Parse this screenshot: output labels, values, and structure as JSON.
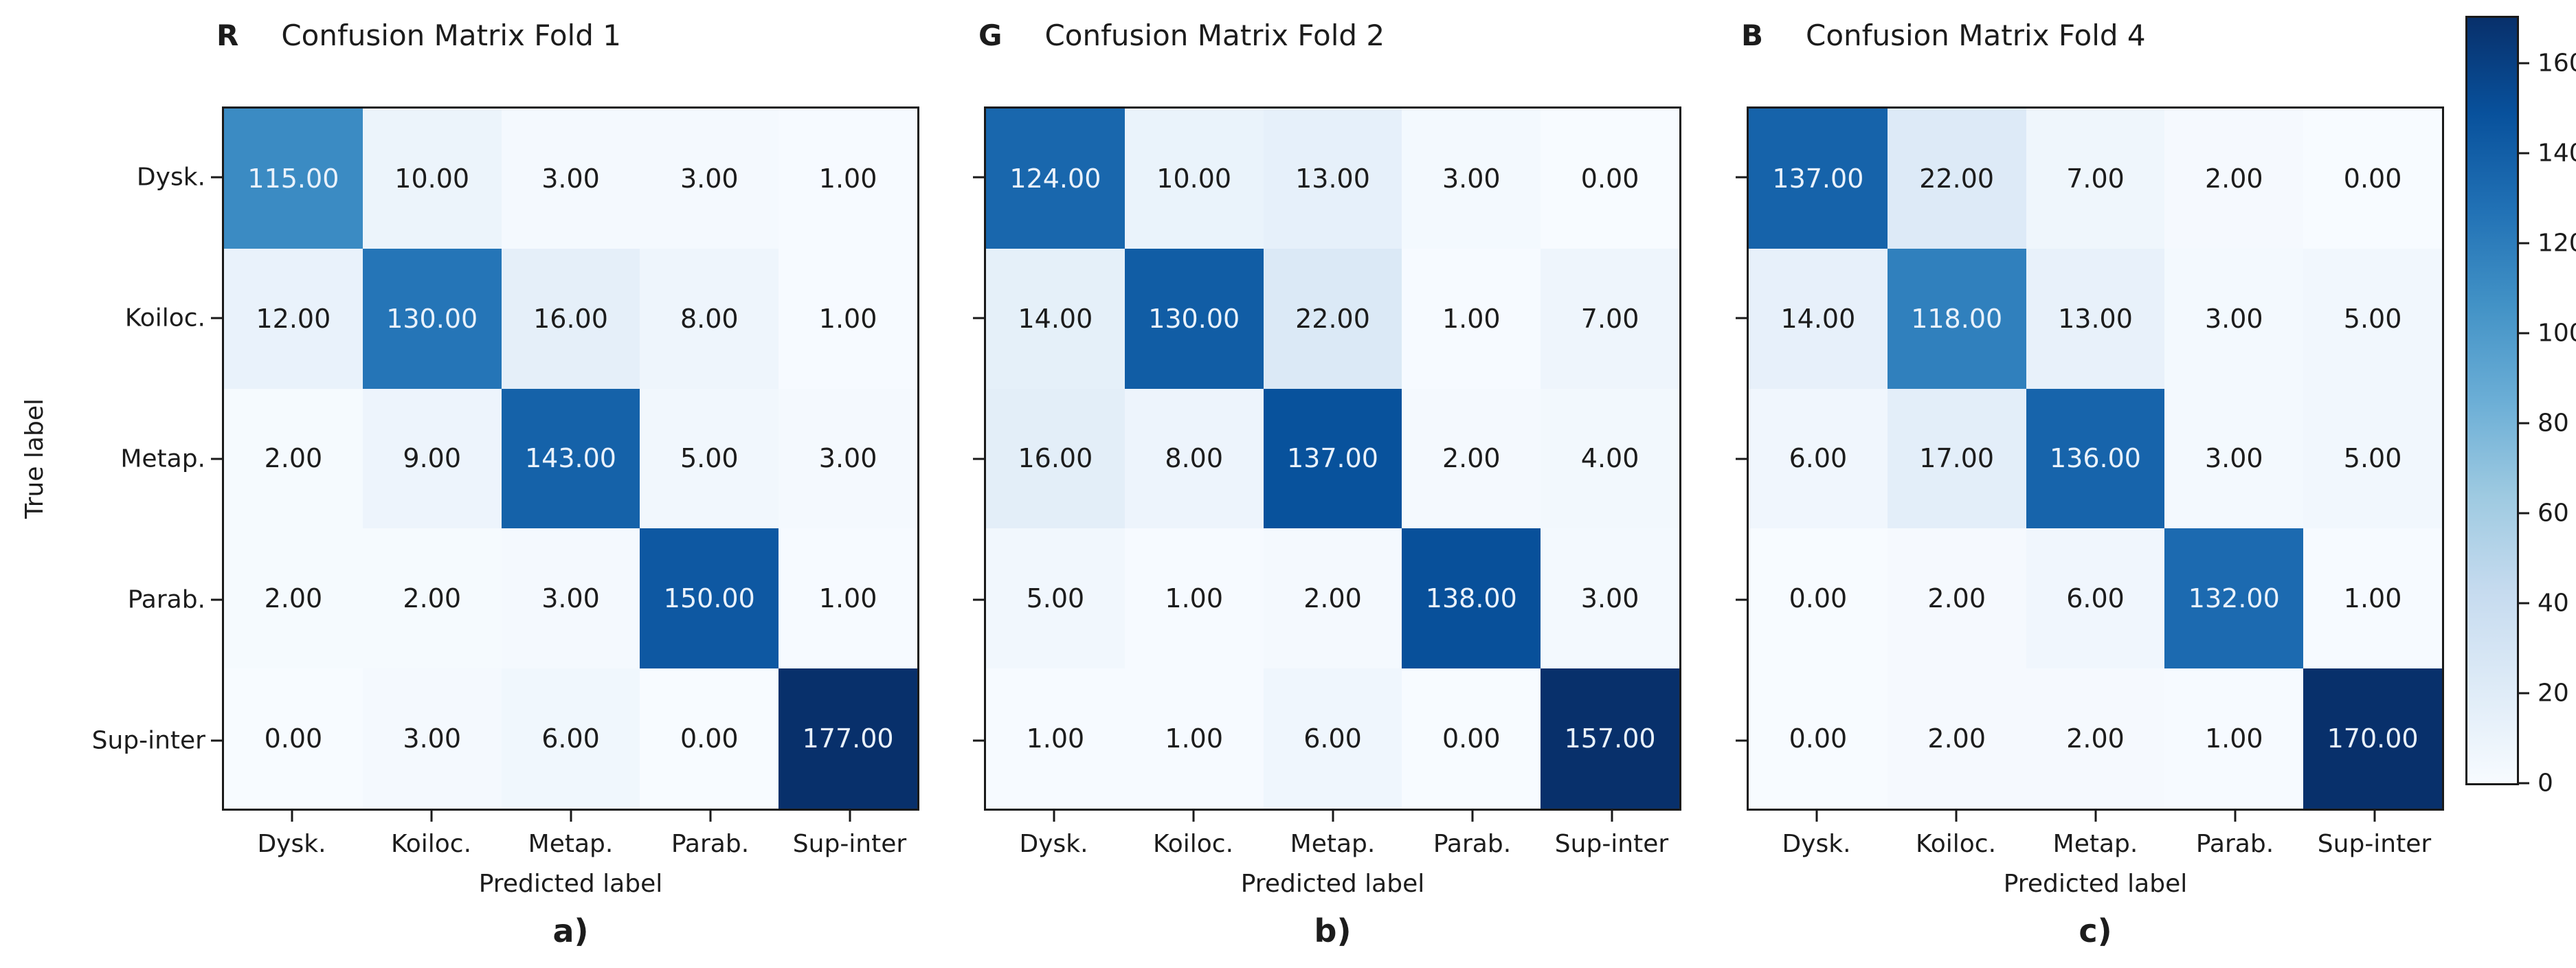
{
  "figure": {
    "background": "#ffffff"
  },
  "colors": {
    "spine": "#1a1a1a",
    "dark_text": "#1c1c1c",
    "light_text": "#eaf2fb",
    "cmap_stops": [
      "#f7fbff",
      "#deebf7",
      "#c6dbef",
      "#9ecae1",
      "#6baed6",
      "#4292c6",
      "#2171b5",
      "#08519c",
      "#08306b"
    ]
  },
  "colorbar": {
    "ticks": [
      0,
      20,
      40,
      60,
      80,
      100,
      120,
      140,
      160
    ],
    "vmax": 170
  },
  "chart_data": [
    {
      "type": "heatmap",
      "colormap": "Blues",
      "channel": "R",
      "title": "Confusion Matrix Fold 1",
      "caption": "a)",
      "xlabel": "Predicted label",
      "ylabel": "True label",
      "x_categories": [
        "Dysk.",
        "Koiloc.",
        "Metap.",
        "Parab.",
        "Sup-inter"
      ],
      "y_categories": [
        "Dysk.",
        "Koiloc.",
        "Metap.",
        "Parab.",
        "Sup-inter"
      ],
      "values": [
        [
          115,
          10,
          3,
          3,
          1
        ],
        [
          12,
          130,
          16,
          8,
          1
        ],
        [
          2,
          9,
          143,
          5,
          3
        ],
        [
          2,
          2,
          3,
          150,
          1
        ],
        [
          0,
          3,
          6,
          0,
          177
        ]
      ]
    },
    {
      "type": "heatmap",
      "colormap": "Blues",
      "channel": "G",
      "title": "Confusion Matrix Fold 2",
      "caption": "b)",
      "xlabel": "Predicted label",
      "ylabel": "True label",
      "x_categories": [
        "Dysk.",
        "Koiloc.",
        "Metap.",
        "Parab.",
        "Sup-inter"
      ],
      "y_categories": [
        "Dysk.",
        "Koiloc.",
        "Metap.",
        "Parab.",
        "Sup-inter"
      ],
      "values": [
        [
          124,
          10,
          13,
          3,
          0
        ],
        [
          14,
          130,
          22,
          1,
          7
        ],
        [
          16,
          8,
          137,
          2,
          4
        ],
        [
          5,
          1,
          2,
          138,
          3
        ],
        [
          1,
          1,
          6,
          0,
          157
        ]
      ]
    },
    {
      "type": "heatmap",
      "colormap": "Blues",
      "channel": "B",
      "title": "Confusion Matrix Fold 4",
      "caption": "c)",
      "xlabel": "Predicted label",
      "ylabel": "True label",
      "x_categories": [
        "Dysk.",
        "Koiloc.",
        "Metap.",
        "Parab.",
        "Sup-inter"
      ],
      "y_categories": [
        "Dysk.",
        "Koiloc.",
        "Metap.",
        "Parab.",
        "Sup-inter"
      ],
      "values": [
        [
          137,
          22,
          7,
          2,
          0
        ],
        [
          14,
          118,
          13,
          3,
          5
        ],
        [
          6,
          17,
          136,
          3,
          5
        ],
        [
          0,
          2,
          6,
          132,
          1
        ],
        [
          0,
          2,
          2,
          1,
          170
        ]
      ]
    }
  ]
}
